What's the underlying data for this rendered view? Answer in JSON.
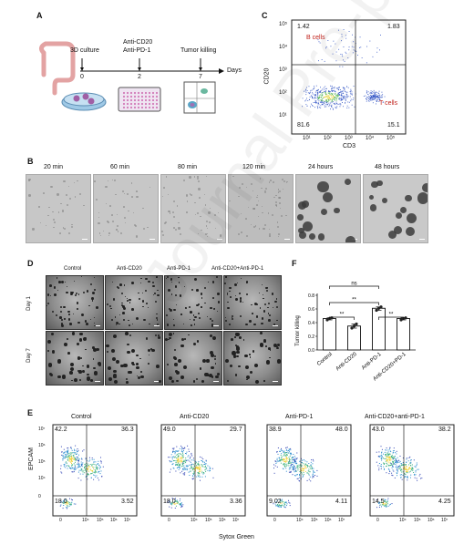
{
  "panelA": {
    "label": "A",
    "steps": [
      {
        "day": "0",
        "name": "3D culture"
      },
      {
        "day": "2",
        "name": "Anti-CD20\nAnti-PD-1"
      },
      {
        "day": "7",
        "name": "Tumor killing"
      }
    ],
    "axis_label": "Days"
  },
  "panelB": {
    "label": "B",
    "timepoints": [
      "20 min",
      "60 min",
      "80 min",
      "120 min",
      "24 hours",
      "48 hours"
    ]
  },
  "panelC": {
    "label": "C",
    "xlabel": "CD3",
    "ylabel": "CD20",
    "quadrants": {
      "ul": "1.42",
      "ur": "1.83",
      "ll": "81.6",
      "lr": "15.1"
    },
    "b_label": "B cells",
    "t_label": "T cells",
    "x_ticks": [
      "10¹",
      "10²",
      "10³",
      "10⁴",
      "10⁵"
    ],
    "y_ticks": [
      "10¹",
      "10²",
      "10³",
      "10⁴",
      "10⁵"
    ]
  },
  "panelD": {
    "label": "D",
    "columns": [
      "Control",
      "Anti-CD20",
      "Anti-PD-1",
      "Anti-CD20+Anti-PD-1"
    ],
    "rows": [
      "Day 1",
      "Day 7"
    ]
  },
  "panelE": {
    "label": "E",
    "xlabel": "Sytox Green",
    "ylabel": "EPCAM",
    "plots": [
      {
        "title": "Control",
        "ul": "42.2",
        "ur": "36.3",
        "ll": "18.0",
        "lr": "3.52"
      },
      {
        "title": "Anti-CD20",
        "ul": "49.0",
        "ur": "29.7",
        "ll": "18.0",
        "lr": "3.36"
      },
      {
        "title": "Anti-PD-1",
        "ul": "38.9",
        "ur": "48.0",
        "ll": "9.02",
        "lr": "4.11"
      },
      {
        "title": "Anti-CD20+anti-PD-1",
        "ul": "43.0",
        "ur": "38.2",
        "ll": "14.5",
        "lr": "4.25"
      }
    ],
    "x_ticks": [
      "0",
      "10⁴",
      "10⁵",
      "10⁶",
      "10⁷"
    ],
    "y_ticks": [
      "10⁷",
      "10⁶",
      "10⁵",
      "10⁴",
      "0"
    ]
  },
  "chart_data": {
    "type": "bar",
    "panel_label": "F",
    "categories": [
      "Control",
      "Anti-CD20",
      "Anti-PD-1",
      "Anti-CD20+PD-1"
    ],
    "values": [
      0.46,
      0.35,
      0.61,
      0.46
    ],
    "points": [
      [
        0.44,
        0.46,
        0.47
      ],
      [
        0.32,
        0.35,
        0.38
      ],
      [
        0.58,
        0.61,
        0.63
      ],
      [
        0.44,
        0.46,
        0.47
      ]
    ],
    "ylabel": "Tumor killing",
    "ylim": [
      0.0,
      0.8
    ],
    "yticks": [
      "0.0",
      "0.2",
      "0.4",
      "0.6",
      "0.8"
    ],
    "significance": [
      {
        "from": 0,
        "to": 2,
        "label": "ns"
      },
      {
        "from": 0,
        "to": 1,
        "label": "**"
      },
      {
        "from": 0,
        "to": 2,
        "label": "**"
      },
      {
        "from": 2,
        "to": 3,
        "label": "**"
      }
    ]
  }
}
